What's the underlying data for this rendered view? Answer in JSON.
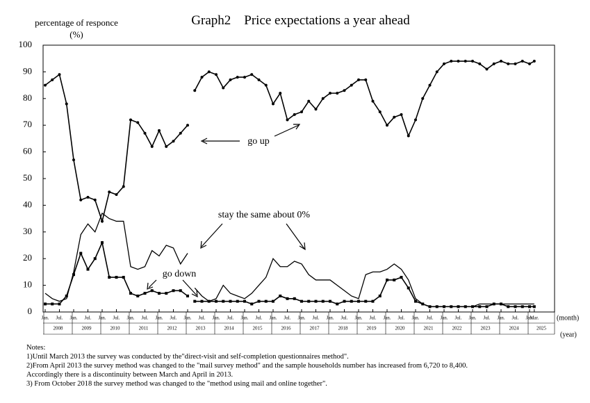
{
  "chart_data": {
    "type": "line",
    "title": "Graph2　Price expectations a year ahead",
    "y_label": "percentage of responce",
    "y_unit": "(%)",
    "x_unit_month": "(month)",
    "x_unit_year": "(year)",
    "ylim": [
      0,
      100
    ],
    "yticks": [
      0,
      10,
      20,
      30,
      40,
      50,
      60,
      70,
      80,
      90,
      100
    ],
    "xticks": [
      {
        "value": "2008-01",
        "label": "Jan."
      },
      {
        "value": "2008-07",
        "label": "Jul."
      },
      {
        "value": "2009-01",
        "label": "Jan."
      },
      {
        "value": "2009-07",
        "label": "Jul."
      },
      {
        "value": "2010-01",
        "label": "Jan."
      },
      {
        "value": "2010-07",
        "label": "Jul."
      },
      {
        "value": "2011-01",
        "label": "Jan."
      },
      {
        "value": "2011-07",
        "label": "Jul."
      },
      {
        "value": "2012-01",
        "label": "Jan."
      },
      {
        "value": "2012-07",
        "label": "Jul."
      },
      {
        "value": "2013-01",
        "label": "Jan."
      },
      {
        "value": "2013-07",
        "label": "Jul."
      },
      {
        "value": "2014-01",
        "label": "Jan."
      },
      {
        "value": "2014-07",
        "label": "Jul."
      },
      {
        "value": "2015-01",
        "label": "Jan."
      },
      {
        "value": "2015-07",
        "label": "Jul."
      },
      {
        "value": "2016-01",
        "label": "Jan."
      },
      {
        "value": "2016-07",
        "label": "Jul."
      },
      {
        "value": "2017-01",
        "label": "Jan."
      },
      {
        "value": "2017-07",
        "label": "Jul."
      },
      {
        "value": "2018-01",
        "label": "Jan."
      },
      {
        "value": "2018-07",
        "label": "Jul."
      },
      {
        "value": "2019-01",
        "label": "Jan."
      },
      {
        "value": "2019-07",
        "label": "Jul."
      },
      {
        "value": "2020-01",
        "label": "Jan."
      },
      {
        "value": "2020-07",
        "label": "Jul."
      },
      {
        "value": "2021-01",
        "label": "Jan."
      },
      {
        "value": "2021-07",
        "label": "Jul."
      },
      {
        "value": "2022-01",
        "label": "Jan."
      },
      {
        "value": "2022-07",
        "label": "Jul."
      },
      {
        "value": "2023-01",
        "label": "Jan."
      },
      {
        "value": "2023-07",
        "label": "Jul."
      },
      {
        "value": "2024-01",
        "label": "Jan."
      },
      {
        "value": "2024-07",
        "label": "Jul."
      },
      {
        "value": "2025-01",
        "label": "Jan."
      },
      {
        "value": "2025-03",
        "label": "Mar."
      }
    ],
    "years": [
      "2008",
      "2009",
      "2010",
      "2011",
      "2012",
      "2013",
      "2014",
      "2015",
      "2016",
      "2017",
      "2018",
      "2019",
      "2020",
      "2021",
      "2022",
      "2023",
      "2024",
      "2025"
    ],
    "x": [
      "2008-01",
      "2008-04",
      "2008-07",
      "2008-10",
      "2009-01",
      "2009-04",
      "2009-07",
      "2009-10",
      "2010-01",
      "2010-04",
      "2010-07",
      "2010-10",
      "2011-01",
      "2011-04",
      "2011-07",
      "2011-10",
      "2012-01",
      "2012-04",
      "2012-07",
      "2012-10",
      "2013-01",
      "2013-03",
      "2013-04",
      "2013-07",
      "2013-10",
      "2014-01",
      "2014-04",
      "2014-07",
      "2014-10",
      "2015-01",
      "2015-04",
      "2015-07",
      "2015-10",
      "2016-01",
      "2016-04",
      "2016-07",
      "2016-10",
      "2017-01",
      "2017-04",
      "2017-07",
      "2017-10",
      "2018-01",
      "2018-04",
      "2018-07",
      "2018-10",
      "2019-01",
      "2019-04",
      "2019-07",
      "2019-10",
      "2020-01",
      "2020-04",
      "2020-07",
      "2020-10",
      "2021-01",
      "2021-04",
      "2021-07",
      "2021-10",
      "2022-01",
      "2022-04",
      "2022-07",
      "2022-10",
      "2023-01",
      "2023-04",
      "2023-07",
      "2023-10",
      "2024-01",
      "2024-04",
      "2024-07",
      "2024-10",
      "2025-01",
      "2025-03"
    ],
    "series": [
      {
        "name": "go up",
        "color": "#000000",
        "marker": "circle",
        "values": [
          85,
          87,
          89,
          78,
          57,
          42,
          43,
          42,
          34,
          45,
          44,
          47,
          72,
          71,
          67,
          62,
          68,
          62,
          64,
          67,
          70,
          null,
          83,
          88,
          90,
          89,
          84,
          87,
          88,
          88,
          89,
          87,
          85,
          78,
          82,
          72,
          74,
          75,
          79,
          76,
          80,
          82,
          82,
          83,
          85,
          87,
          87,
          79,
          75,
          70,
          73,
          74,
          66,
          72,
          80,
          85,
          90,
          93,
          94,
          94,
          94,
          94,
          93,
          91,
          93,
          94,
          93,
          93,
          94,
          93,
          94
        ]
      },
      {
        "name": "stay the same about 0%",
        "color": "#000000",
        "marker": "none",
        "values": [
          7,
          5,
          4,
          5,
          15,
          29,
          33,
          30,
          37,
          35,
          34,
          34,
          17,
          16,
          17,
          23,
          21,
          25,
          24,
          18,
          22,
          null,
          9,
          6,
          4,
          5,
          10,
          7,
          6,
          5,
          7,
          10,
          13,
          20,
          17,
          17,
          19,
          18,
          14,
          12,
          12,
          12,
          10,
          8,
          6,
          5,
          14,
          15,
          15,
          16,
          18,
          16,
          12,
          5,
          3,
          2,
          2,
          2,
          2,
          2,
          2,
          2,
          3,
          3,
          3,
          3,
          3,
          3,
          3,
          3,
          3
        ]
      },
      {
        "name": "go down",
        "color": "#000000",
        "marker": "square",
        "values": [
          3,
          3,
          3,
          6,
          14,
          22,
          16,
          20,
          26,
          13,
          13,
          13,
          7,
          6,
          7,
          8,
          7,
          7,
          8,
          8,
          6,
          null,
          4,
          4,
          4,
          4,
          4,
          4,
          4,
          4,
          3,
          4,
          4,
          4,
          6,
          5,
          5,
          4,
          4,
          4,
          4,
          4,
          3,
          4,
          4,
          4,
          4,
          4,
          6,
          12,
          12,
          13,
          9,
          4,
          3,
          2,
          2,
          2,
          2,
          2,
          2,
          2,
          2,
          2,
          3,
          3,
          2,
          2,
          2,
          2,
          2
        ]
      }
    ]
  },
  "notes": {
    "title": "Notes:",
    "lines": [
      "1)Until March 2013 the survey was conducted by the\"direct-visit and self-completion questionnaires method\".",
      "2)From April 2013 the survey method was changed to the \"mail survey method\" and the sample households number has increased from 6,720 to 8,400.",
      "Accordingly there is a discontinuity between March and April in 2013.",
      "3) From October 2018 the survey method was changed to the \"method using mail and online together\"."
    ]
  }
}
